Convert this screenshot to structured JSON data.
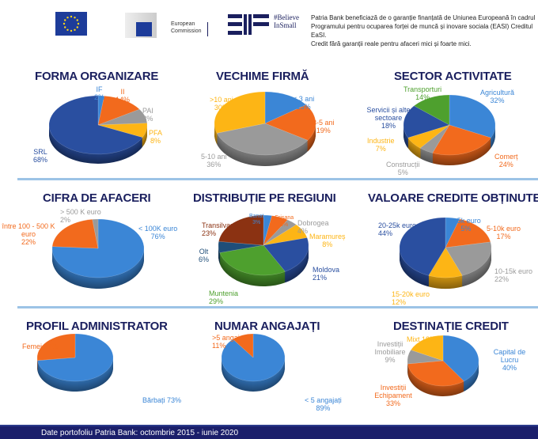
{
  "header": {
    "eu_flag_logo": "eu-flag",
    "ec_logo_text": [
      "European",
      "Commission"
    ],
    "eif_logo_text": [
      "#Believe",
      "InSmall"
    ],
    "disclaimer": [
      "Patria Bank beneficiază de o garanție finanțată de Uniunea Europeană în cadrul",
      "Programului pentru ocuparea forței de muncă și inovare sociala (EASI) Creditul EaSI.",
      "Credit fără garanții reale pentru afaceri mici și foarte mici."
    ]
  },
  "colors": {
    "title": "#1a1f5e",
    "blue": "#3b86d6",
    "orange": "#f26a1d",
    "gray": "#9a9a9a",
    "yellow": "#fdb515",
    "darkblue": "#2a4fa0",
    "green": "#4ea02e",
    "brown": "#8b3212",
    "navy": "#1f4e79",
    "separator": "#9cc3e6",
    "footer": "#1b1f6b"
  },
  "chart_data": [
    {
      "type": "pie",
      "title": "FORMA ORGANIZARE",
      "slices": [
        {
          "label": "IF",
          "value": 2,
          "text": "2%",
          "color": "#3b86d6"
        },
        {
          "label": "II",
          "value": 14,
          "text": "14%",
          "color": "#f26a1d"
        },
        {
          "label": "PAI",
          "value": 8,
          "text": "8%",
          "color": "#9a9a9a"
        },
        {
          "label": "PFA",
          "value": 8,
          "text": "8%",
          "color": "#fdb515"
        },
        {
          "label": "SRL",
          "value": 68,
          "text": "68%",
          "color": "#2a4fa0"
        }
      ]
    },
    {
      "type": "pie",
      "title": "VECHIME FIRMĂ",
      "slices": [
        {
          "label": "< 3 ani",
          "value": 15,
          "text": "15%",
          "color": "#3b86d6"
        },
        {
          "label": "3-5 ani",
          "value": 19,
          "text": "19%",
          "color": "#f26a1d"
        },
        {
          "label": "5-10 ani",
          "value": 36,
          "text": "36%",
          "color": "#9a9a9a"
        },
        {
          "label": ">10 ani",
          "value": 30,
          "text": "30%",
          "color": "#fdb515"
        }
      ]
    },
    {
      "type": "pie",
      "title": "SECTOR ACTIVITATE",
      "slices": [
        {
          "label": "Agricultură",
          "value": 32,
          "text": "32%",
          "color": "#3b86d6"
        },
        {
          "label": "Comerț",
          "value": 24,
          "text": "24%",
          "color": "#f26a1d"
        },
        {
          "label": "Construcții",
          "value": 5,
          "text": "5%",
          "color": "#9a9a9a"
        },
        {
          "label": "Industrie",
          "value": 7,
          "text": "7%",
          "color": "#fdb515"
        },
        {
          "label": "Servicii și alte sectoare",
          "value": 18,
          "text": "18%",
          "color": "#2a4fa0"
        },
        {
          "label": "Transporturi",
          "value": 14,
          "text": "14%",
          "color": "#4ea02e"
        }
      ]
    },
    {
      "type": "pie",
      "title": "CIFRA DE AFACERI",
      "slices": [
        {
          "label": "< 100K euro",
          "value": 76,
          "text": "76%",
          "color": "#3b86d6"
        },
        {
          "label": "între 100 - 500 K euro",
          "value": 22,
          "text": "22%",
          "color": "#f26a1d"
        },
        {
          "label": "> 500 K euro",
          "value": 2,
          "text": "2%",
          "color": "#9a9a9a"
        }
      ]
    },
    {
      "type": "pie",
      "title": "DISTRIBUȚIE PE REGIUNI",
      "slices": [
        {
          "label": "Banat",
          "value": 3,
          "text": "3%",
          "color": "#3b86d6"
        },
        {
          "label": "Crișana",
          "value": 6,
          "text": "6%",
          "color": "#f26a1d"
        },
        {
          "label": "Dobrogea",
          "value": 4,
          "text": "4%",
          "color": "#9a9a9a"
        },
        {
          "label": "Maramureș",
          "value": 8,
          "text": "8%",
          "color": "#fdb515"
        },
        {
          "label": "Moldova",
          "value": 21,
          "text": "21%",
          "color": "#2a4fa0"
        },
        {
          "label": "Muntenia",
          "value": 29,
          "text": "29%",
          "color": "#4ea02e"
        },
        {
          "label": "Olt",
          "value": 6,
          "text": "6%",
          "color": "#1f4e79"
        },
        {
          "label": "Transilvania",
          "value": 23,
          "text": "23%",
          "color": "#8b3212"
        }
      ]
    },
    {
      "type": "pie",
      "title": "VALOARE CREDITE OBȚINUTE",
      "slices": [
        {
          "label": "< 5k euro",
          "value": 5,
          "text": "5%",
          "color": "#3b86d6"
        },
        {
          "label": "5-10k euro",
          "value": 17,
          "text": "17%",
          "color": "#f26a1d"
        },
        {
          "label": "10-15k euro",
          "value": 22,
          "text": "22%",
          "color": "#9a9a9a"
        },
        {
          "label": "15-20k euro",
          "value": 12,
          "text": "12%",
          "color": "#fdb515"
        },
        {
          "label": "20-25k euro",
          "value": 44,
          "text": "44%",
          "color": "#2a4fa0"
        }
      ]
    },
    {
      "type": "pie",
      "title": "PROFIL ADMINISTRATOR",
      "slices": [
        {
          "label": "Bărbați",
          "value": 73,
          "text": "73%",
          "color": "#3b86d6"
        },
        {
          "label": "Femei",
          "value": 27,
          "text": "27%",
          "color": "#f26a1d"
        }
      ]
    },
    {
      "type": "pie",
      "title": "NUMAR ANGAJAȚI",
      "slices": [
        {
          "label": "< 5 angajați",
          "value": 89,
          "text": "89%",
          "color": "#3b86d6"
        },
        {
          "label": ">5 angajați",
          "value": 11,
          "text": "11%",
          "color": "#f26a1d"
        }
      ]
    },
    {
      "type": "pie",
      "title": "DESTINAȚIE CREDIT",
      "slices": [
        {
          "label": "Capital de Lucru",
          "value": 40,
          "text": "40%",
          "color": "#3b86d6"
        },
        {
          "label": "Investiții Echipament",
          "value": 33,
          "text": "33%",
          "color": "#f26a1d"
        },
        {
          "label": "Investiții Imobiliare",
          "value": 9,
          "text": "9%",
          "color": "#9a9a9a"
        },
        {
          "label": "Mixt",
          "value": 18,
          "text": "18%",
          "color": "#fdb515"
        }
      ]
    }
  ],
  "footer": {
    "text": "Date portofoliu Patria Bank: octombrie 2015 - iunie 2020"
  }
}
